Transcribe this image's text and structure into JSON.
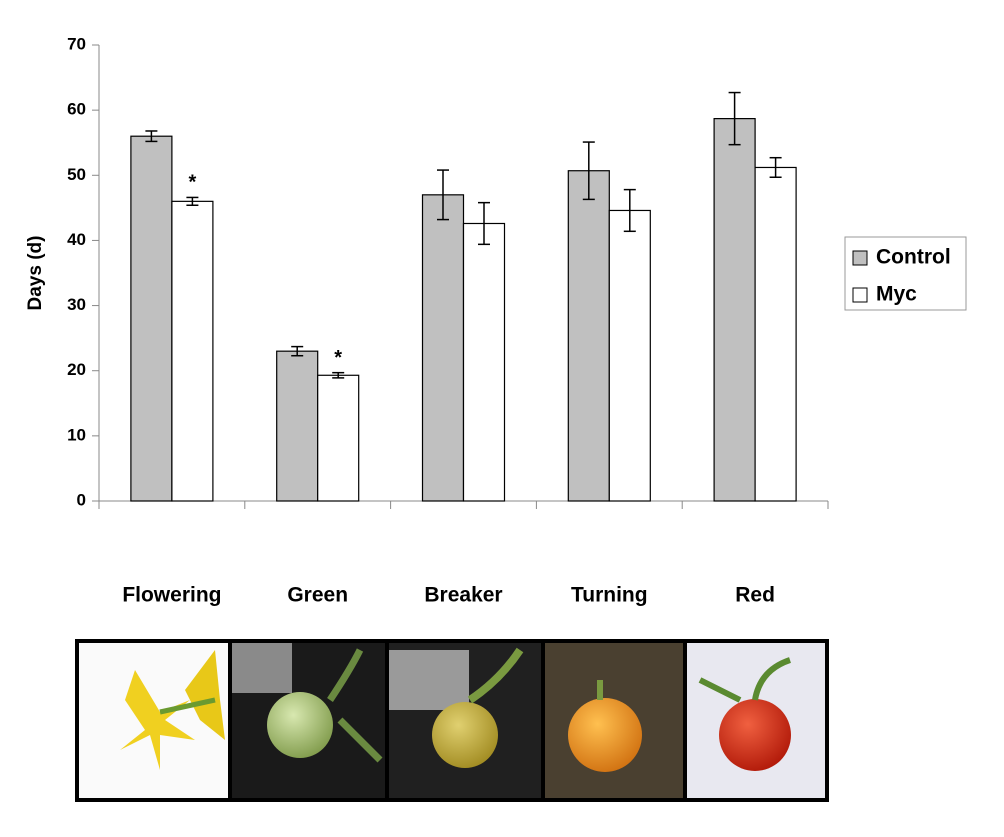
{
  "chart_data": {
    "type": "bar",
    "ylabel": "Days (d)",
    "categories": [
      "Flowering",
      "Green",
      "Breaker",
      "Turning",
      "Red"
    ],
    "series": [
      {
        "name": "Control",
        "color": "#c0c0c0",
        "values": [
          56,
          23,
          47,
          50.7,
          58.7
        ],
        "errors": [
          0.8,
          0.7,
          3.8,
          4.4,
          4
        ]
      },
      {
        "name": "Myc",
        "color": "#ffffff",
        "values": [
          46,
          19.3,
          42.6,
          44.6,
          51.2
        ],
        "errors": [
          0.6,
          0.4,
          3.2,
          3.2,
          1.5
        ]
      }
    ],
    "annotations": [
      {
        "text": "*",
        "category_index": 0,
        "series_index": 1
      },
      {
        "text": "*",
        "category_index": 1,
        "series_index": 1
      }
    ],
    "ylim": [
      0,
      70
    ],
    "yticks": [
      0,
      10,
      20,
      30,
      40,
      50,
      60,
      70
    ],
    "grid": false,
    "legend": "right"
  }
}
